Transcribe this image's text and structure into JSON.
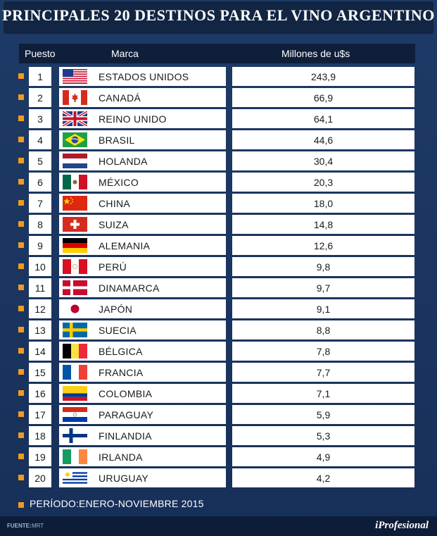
{
  "title": "PRINCIPALES 20 DESTINOS PARA EL VINO ARGENTINO",
  "chart_data": {
    "type": "table",
    "columns": [
      "Puesto",
      "Marca",
      "Millones de u$s"
    ],
    "rows": [
      {
        "rank": "1",
        "country": "ESTADOS UNIDOS",
        "value": "243,9",
        "flag": "us-flag"
      },
      {
        "rank": "2",
        "country": "CANADÁ",
        "value": "66,9",
        "flag": "canada-flag"
      },
      {
        "rank": "3",
        "country": "REINO UNIDO",
        "value": "64,1",
        "flag": "uk-flag"
      },
      {
        "rank": "4",
        "country": "BRASIL",
        "value": "44,6",
        "flag": "brazil-flag"
      },
      {
        "rank": "5",
        "country": "HOLANDA",
        "value": "30,4",
        "flag": "netherlands-flag"
      },
      {
        "rank": "6",
        "country": "MÉXICO",
        "value": "20,3",
        "flag": "mexico-flag"
      },
      {
        "rank": "7",
        "country": "CHINA",
        "value": "18,0",
        "flag": "china-flag"
      },
      {
        "rank": "8",
        "country": "SUIZA",
        "value": "14,8",
        "flag": "switzerland-flag"
      },
      {
        "rank": "9",
        "country": "ALEMANIA",
        "value": "12,6",
        "flag": "germany-flag"
      },
      {
        "rank": "10",
        "country": "PERÚ",
        "value": "9,8",
        "flag": "peru-flag"
      },
      {
        "rank": "11",
        "country": "DINAMARCA",
        "value": "9,7",
        "flag": "denmark-flag"
      },
      {
        "rank": "12",
        "country": "JAPÓN",
        "value": "9,1",
        "flag": "japan-flag"
      },
      {
        "rank": "13",
        "country": "SUECIA",
        "value": "8,8",
        "flag": "sweden-flag"
      },
      {
        "rank": "14",
        "country": "BÉLGICA",
        "value": "7,8",
        "flag": "belgium-flag"
      },
      {
        "rank": "15",
        "country": "FRANCIA",
        "value": "7,7",
        "flag": "france-flag"
      },
      {
        "rank": "16",
        "country": "COLOMBIA",
        "value": "7,1",
        "flag": "colombia-flag"
      },
      {
        "rank": "17",
        "country": "PARAGUAY",
        "value": "5,9",
        "flag": "paraguay-flag"
      },
      {
        "rank": "18",
        "country": "FINLANDIA",
        "value": "5,3",
        "flag": "finland-flag"
      },
      {
        "rank": "19",
        "country": "IRLANDA",
        "value": "4,9",
        "flag": "ireland-flag"
      },
      {
        "rank": "20",
        "country": "URUGUAY",
        "value": "4,2",
        "flag": "uruguay-flag"
      }
    ]
  },
  "footer": {
    "period": "PERÍODO:ENERO-NOVIEMBRE 2015",
    "source_label": "FUENTE:",
    "source_value": "MRT",
    "logo": "iProfesional"
  },
  "colors": {
    "background": "#1d3b66",
    "header": "#0f1f3a",
    "bullet": "#f29a1f",
    "row": "#ffffff"
  }
}
